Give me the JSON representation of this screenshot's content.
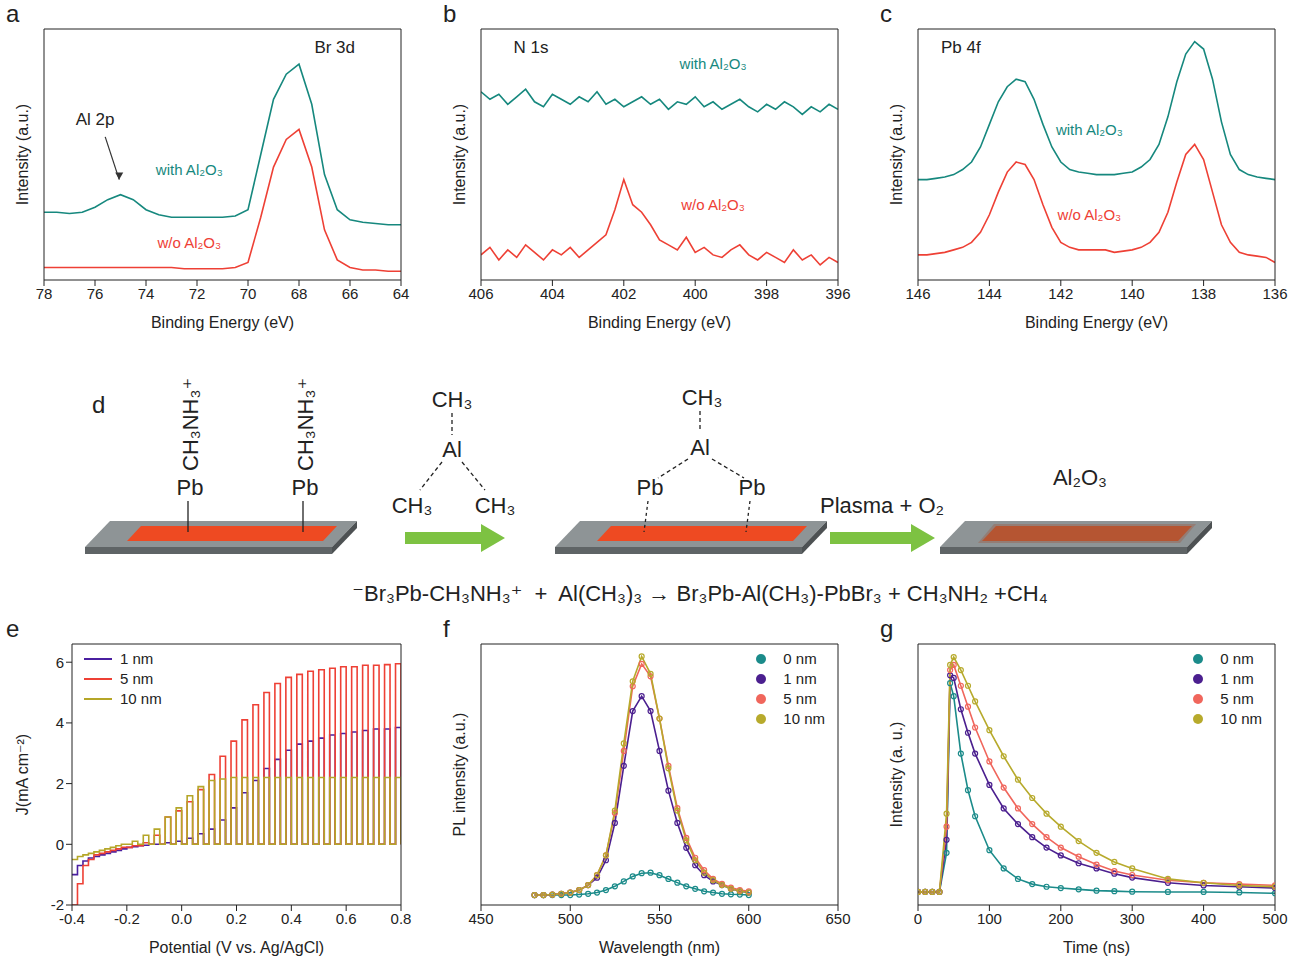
{
  "chart_data": [
    {
      "panel": "a",
      "type": "line",
      "annotations": [
        "Br 3d",
        "Al 2p"
      ],
      "x_label": "Binding Energy (eV)",
      "y_label": "Intensity (a.u.)",
      "x": [
        78,
        77.5,
        77,
        76.5,
        76,
        75.5,
        75,
        74.5,
        74,
        73.5,
        73,
        72.5,
        72,
        71.5,
        71,
        70.5,
        70,
        69.5,
        69,
        68.5,
        68,
        67.5,
        67,
        66.5,
        66,
        65.5,
        65,
        64.5,
        64
      ],
      "series": [
        {
          "name": "with Al₂O₃",
          "color": "#16887e",
          "values": [
            27,
            27,
            26.5,
            27,
            29,
            32,
            34,
            32,
            28,
            26,
            25,
            25,
            25,
            25,
            25,
            25.5,
            28,
            50,
            72,
            82,
            86,
            70,
            42,
            28,
            24,
            23,
            22.5,
            22,
            22
          ]
        },
        {
          "name": "w/o Al₂O₃",
          "color": "#ee4035",
          "values": [
            5,
            5,
            5,
            5,
            5,
            5,
            5,
            5,
            5,
            5,
            5,
            4.5,
            4.5,
            4.5,
            4.5,
            5,
            7,
            25,
            45,
            56,
            60,
            45,
            20,
            8,
            5,
            4,
            4,
            3.5,
            3.5
          ]
        }
      ],
      "xlim": [
        78,
        64
      ],
      "xticks": [
        78,
        76,
        74,
        72,
        70,
        68,
        66,
        64
      ],
      "ylim": [
        0,
        100
      ],
      "tick_labels": "x"
    },
    {
      "panel": "b",
      "type": "line",
      "annotations": [
        "N 1s"
      ],
      "x_label": "Binding Energy (eV)",
      "y_label": "Intensity (a.u.)",
      "x": [
        406,
        405.75,
        405.5,
        405.25,
        405,
        404.75,
        404.5,
        404.25,
        404,
        403.75,
        403.5,
        403.25,
        403,
        402.75,
        402.5,
        402.25,
        402,
        401.75,
        401.5,
        401.25,
        401,
        400.75,
        400.5,
        400.25,
        400,
        399.75,
        399.5,
        399.25,
        399,
        398.75,
        398.5,
        398.25,
        398,
        397.75,
        397.5,
        397.25,
        397,
        396.75,
        396.5,
        396.25,
        396
      ],
      "series": [
        {
          "name": "with Al₂O₃",
          "color": "#16887e",
          "values": [
            75,
            72,
            74,
            70,
            73,
            76,
            71,
            69,
            74,
            72,
            70,
            73,
            71,
            75,
            70,
            72,
            69,
            71,
            73,
            70,
            72,
            68,
            71,
            70,
            73,
            69,
            71,
            68,
            70,
            72,
            69,
            67,
            70,
            68,
            71,
            69,
            66,
            69,
            67,
            70,
            68
          ]
        },
        {
          "name": "w/o Al₂O₃",
          "color": "#ee4035",
          "values": [
            10,
            13,
            8,
            12,
            9,
            14,
            11,
            8,
            12,
            10,
            13,
            9,
            12,
            15,
            18,
            28,
            40,
            30,
            27,
            22,
            16,
            14,
            12,
            17,
            11,
            13,
            10,
            9,
            12,
            14,
            10,
            8,
            11,
            9,
            7,
            12,
            8,
            10,
            6,
            9,
            7
          ]
        }
      ],
      "xlim": [
        406,
        396
      ],
      "xticks": [
        406,
        404,
        402,
        400,
        398,
        396
      ],
      "ylim": [
        0,
        100
      ],
      "tick_labels": "x"
    },
    {
      "panel": "c",
      "type": "line",
      "annotations": [
        "Pb 4f"
      ],
      "x_label": "Binding Energy (eV)",
      "y_label": "Intensity (a.u.)",
      "x": [
        146,
        145.75,
        145.5,
        145.25,
        145,
        144.75,
        144.5,
        144.25,
        144,
        143.75,
        143.5,
        143.25,
        143,
        142.75,
        142.5,
        142.25,
        142,
        141.75,
        141.5,
        141.25,
        141,
        140.75,
        140.5,
        140.25,
        140,
        139.75,
        139.5,
        139.25,
        139,
        138.75,
        138.5,
        138.25,
        138,
        137.75,
        137.5,
        137.25,
        137,
        136.75,
        136.5,
        136.25,
        136
      ],
      "series": [
        {
          "name": "with Al₂O₃",
          "color": "#16887e",
          "values": [
            40,
            40,
            40.5,
            41,
            42,
            44,
            47,
            53,
            62,
            71,
            77,
            80,
            79,
            72,
            62,
            53,
            47,
            44,
            43,
            42.5,
            42,
            42,
            42,
            42.5,
            43,
            45,
            48,
            54,
            65,
            79,
            90,
            95,
            92,
            80,
            63,
            50,
            44,
            42,
            41,
            40.5,
            40
          ]
        },
        {
          "name": "w/o Al₂O₃",
          "color": "#ee4035",
          "values": [
            10,
            10,
            10.5,
            11,
            12,
            13,
            15,
            19,
            26,
            35,
            43,
            47,
            46,
            40,
            30,
            21,
            15,
            13,
            12,
            12,
            12,
            12,
            11,
            11.5,
            12,
            13,
            15,
            19,
            27,
            39,
            50,
            54,
            48,
            35,
            22,
            15,
            11,
            10,
            9.5,
            9,
            7
          ]
        }
      ],
      "xlim": [
        146,
        136
      ],
      "xticks": [
        146,
        144,
        142,
        140,
        138,
        136
      ],
      "ylim": [
        0,
        100
      ],
      "tick_labels": "x"
    },
    {
      "panel": "e",
      "type": "line",
      "x_label": "Potential (V vs. Ag/AgCl)",
      "y_label": "J(mA cm⁻²)",
      "legend": "upper left",
      "line_style": "step",
      "x": [
        -0.4,
        -0.38,
        -0.36,
        -0.34,
        -0.32,
        -0.3,
        -0.28,
        -0.26,
        -0.24,
        -0.22,
        -0.2,
        -0.18,
        -0.16,
        -0.14,
        -0.12,
        -0.1,
        -0.08,
        -0.06,
        -0.04,
        -0.02,
        0,
        0.02,
        0.04,
        0.06,
        0.08,
        0.1,
        0.12,
        0.14,
        0.16,
        0.18,
        0.2,
        0.22,
        0.24,
        0.26,
        0.28,
        0.3,
        0.32,
        0.34,
        0.36,
        0.38,
        0.4,
        0.42,
        0.44,
        0.46,
        0.48,
        0.5,
        0.52,
        0.54,
        0.56,
        0.58,
        0.6,
        0.62,
        0.64,
        0.66,
        0.68,
        0.7,
        0.72,
        0.74,
        0.76,
        0.78,
        0.8
      ],
      "series": [
        {
          "name": "1 nm",
          "color": "#4a1fa0",
          "values": [
            -1,
            -0.7,
            -0.55,
            -0.45,
            -0.4,
            -0.35,
            -0.3,
            -0.25,
            -0.2,
            -0.15,
            -0.1,
            -0.08,
            -0.05,
            -0.03,
            0,
            0,
            0,
            0.05,
            0,
            0.1,
            0,
            0.2,
            0,
            0.35,
            0,
            0.5,
            0,
            0.8,
            0,
            1.2,
            0,
            1.7,
            0,
            2.1,
            0,
            2.5,
            0,
            2.8,
            0,
            3.1,
            0,
            3.3,
            0,
            3.4,
            0,
            3.5,
            0,
            3.6,
            0,
            3.65,
            0,
            3.7,
            0,
            3.75,
            0,
            3.8,
            0,
            3.8,
            0,
            3.85,
            0
          ]
        },
        {
          "name": "5 nm",
          "color": "#ee4035",
          "values": [
            -2,
            -1.3,
            -0.7,
            -0.5,
            -0.35,
            -0.3,
            -0.25,
            -0.2,
            -0.15,
            -0.1,
            -0.1,
            -0.05,
            -0.05,
            0.05,
            0,
            0.3,
            0,
            0.9,
            0,
            1.1,
            0,
            1.4,
            0,
            1.8,
            0,
            2.3,
            0,
            2.9,
            0,
            3.4,
            0,
            4.1,
            0,
            4.6,
            0,
            5,
            0,
            5.3,
            0,
            5.5,
            0,
            5.6,
            0,
            5.7,
            0,
            5.75,
            0,
            5.8,
            0,
            5.85,
            0,
            5.85,
            0,
            5.9,
            0,
            5.9,
            0,
            5.92,
            0,
            5.95,
            0
          ]
        },
        {
          "name": "10 nm",
          "color": "#b5a628",
          "values": [
            -0.5,
            -0.4,
            -0.35,
            -0.3,
            -0.25,
            -0.2,
            -0.15,
            -0.1,
            -0.05,
            0,
            0,
            0.1,
            0,
            0.3,
            0,
            0.5,
            0,
            0.9,
            0,
            1.2,
            0,
            1.6,
            0,
            1.9,
            0,
            2.1,
            0,
            2.15,
            0,
            2.2,
            0,
            2.2,
            0,
            2.2,
            0,
            2.2,
            0,
            2.2,
            0,
            2.2,
            0,
            2.2,
            0,
            2.2,
            0,
            2.2,
            0,
            2.2,
            0,
            2.2,
            0,
            2.2,
            0,
            2.2,
            0,
            2.2,
            0,
            2.2,
            0,
            2.2,
            0
          ]
        }
      ],
      "xlim": [
        -0.4,
        0.8
      ],
      "xticks": [
        -0.4,
        -0.2,
        {
          "value": 0,
          "label": "0.0"
        },
        0.2,
        0.4,
        0.6,
        0.8
      ],
      "ylim": [
        -2,
        6.6
      ],
      "yticks": [
        -2,
        0,
        2,
        4,
        6
      ]
    },
    {
      "panel": "f",
      "type": "line",
      "x_label": "Wavelength (nm)",
      "y_label": "PL intensity (a.u.)",
      "legend": "upper right",
      "marker": "circle",
      "x": [
        480,
        485,
        490,
        495,
        500,
        505,
        510,
        515,
        520,
        525,
        530,
        535,
        540,
        545,
        550,
        555,
        560,
        565,
        570,
        575,
        580,
        585,
        590,
        595,
        600
      ],
      "series": [
        {
          "name": "0 nm",
          "color": "#1b8b8a",
          "values": [
            4,
            4,
            4,
            4,
            4,
            4.2,
            4.5,
            5,
            6,
            7.5,
            9.5,
            11.5,
            12.8,
            13,
            12,
            10.5,
            9,
            7.5,
            6.5,
            5.5,
            5,
            4.5,
            4.3,
            4.2,
            4
          ]
        },
        {
          "name": "1 nm",
          "color": "#4b1f8f",
          "values": [
            4,
            4,
            4.2,
            4.5,
            5,
            6,
            8,
            11,
            18,
            33,
            56,
            78,
            84,
            78,
            62,
            46,
            33,
            23,
            16,
            12,
            9.5,
            8,
            6.5,
            5.5,
            5
          ]
        },
        {
          "name": "5 nm",
          "color": "#f0665c",
          "values": [
            4,
            4,
            4.2,
            4.5,
            5,
            6,
            8,
            12,
            20,
            37,
            62,
            88,
            97,
            92,
            75,
            56,
            39,
            27,
            19,
            14,
            10.5,
            8.5,
            7,
            6,
            5.5
          ]
        },
        {
          "name": "10 nm",
          "color": "#b7aa2c",
          "values": [
            4,
            4,
            4.2,
            4.5,
            5,
            6,
            8,
            12,
            20,
            38,
            65,
            90,
            100,
            93,
            75,
            55,
            38,
            26,
            18,
            13,
            10,
            8,
            6.5,
            5.5,
            5
          ]
        }
      ],
      "xlim": [
        450,
        650
      ],
      "xticks": [
        450,
        500,
        550,
        600,
        650
      ],
      "ylim": [
        0,
        105
      ],
      "tick_labels": "x"
    },
    {
      "panel": "g",
      "type": "line",
      "x_label": "Time (ns)",
      "y_label": "Intensity (a. u.)",
      "legend": "upper right",
      "marker": "circle",
      "x": [
        0,
        10,
        20,
        30,
        40,
        45,
        50,
        60,
        70,
        80,
        100,
        120,
        140,
        160,
        180,
        200,
        225,
        250,
        275,
        300,
        350,
        400,
        450,
        500
      ],
      "series": [
        {
          "name": "0 nm",
          "color": "#1b8b8a",
          "values": [
            5,
            5,
            5,
            5,
            20,
            85,
            80,
            58,
            44,
            34,
            21,
            14,
            10,
            8,
            7,
            6.5,
            6,
            5.5,
            5.3,
            5.1,
            5,
            5,
            4.8,
            4.5
          ]
        },
        {
          "name": "1 nm",
          "color": "#4b1f8f",
          "values": [
            5,
            5,
            5,
            5,
            25,
            88,
            87,
            75,
            66,
            58,
            46,
            37,
            31,
            26,
            22,
            19,
            16,
            14,
            12,
            10.5,
            8.5,
            7.5,
            7,
            6.5
          ]
        },
        {
          "name": "5 nm",
          "color": "#f0665c",
          "values": [
            5,
            5,
            5,
            5,
            30,
            90,
            92,
            84,
            76,
            68,
            55,
            45,
            37,
            31,
            26,
            22,
            18.5,
            15.5,
            13,
            11.5,
            9.5,
            8.5,
            8,
            7.5
          ]
        },
        {
          "name": "10 nm",
          "color": "#b7aa2c",
          "values": [
            5,
            5,
            5,
            5,
            35,
            92,
            95,
            90,
            84,
            78,
            67,
            57,
            48,
            41,
            35,
            30,
            24.5,
            20,
            16.5,
            14,
            10,
            8.5,
            7.5,
            7
          ]
        }
      ],
      "xlim": [
        0,
        500
      ],
      "xticks": [
        0,
        100,
        200,
        300,
        400,
        500
      ],
      "ylim": [
        0,
        100
      ],
      "tick_labels": "x"
    }
  ],
  "diagram": {
    "panel": "d",
    "stage1": {
      "ligands": [
        "CH₃NH₃⁺",
        "CH₃NH₃⁺"
      ],
      "sites": [
        "Pb",
        "Pb"
      ]
    },
    "reagent": {
      "top": "CH₃",
      "center": "Al",
      "left": "CH₃",
      "right": "CH₃"
    },
    "stage2": {
      "top": "CH₃",
      "center": "Al",
      "sites": [
        "Pb",
        "Pb"
      ]
    },
    "arrow2": "Plasma + O₂",
    "stage3": "Al₂O₃",
    "equation": "⁻Br₃Pb-CH₃NH₃⁺  +  Al(CH₃)₃ → Br₃Pb-Al(CH₃)-PbBr₃ + CH₃NH₂ +CH₄"
  }
}
